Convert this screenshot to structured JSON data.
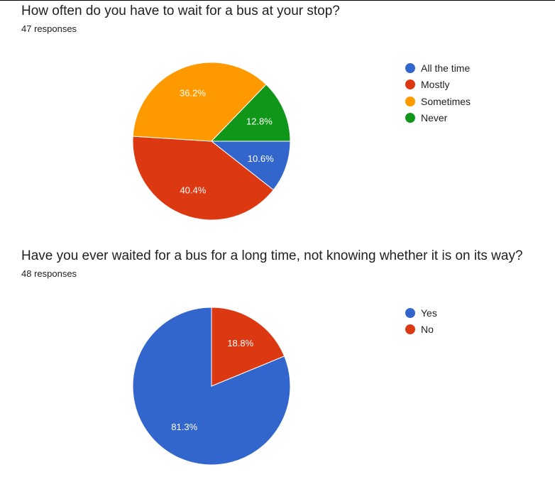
{
  "questions": [
    {
      "title": "How often do you have to wait for a bus at your stop?",
      "responses": "47 responses"
    },
    {
      "title": "Have you ever waited for a bus for a long time, not knowing whether it is on its way?",
      "responses": "48 responses"
    }
  ],
  "chart_data": [
    {
      "type": "pie",
      "title": "How often do you have to wait for a bus at your stop?",
      "legend_position": "right",
      "slices": [
        {
          "label": "All the time",
          "value": 10.6,
          "display": "10.6%",
          "color": "#3366cc"
        },
        {
          "label": "Mostly",
          "value": 40.4,
          "display": "40.4%",
          "color": "#dc3912"
        },
        {
          "label": "Sometimes",
          "value": 36.2,
          "display": "36.2%",
          "color": "#ff9900"
        },
        {
          "label": "Never",
          "value": 12.8,
          "display": "12.8%",
          "color": "#109618"
        }
      ]
    },
    {
      "type": "pie",
      "title": "Have you ever waited for a bus for a long time, not knowing whether it is on its way?",
      "legend_position": "right",
      "slices": [
        {
          "label": "Yes",
          "value": 81.3,
          "display": "81.3%",
          "color": "#3366cc"
        },
        {
          "label": "No",
          "value": 18.8,
          "display": "18.8%",
          "color": "#dc3912"
        }
      ]
    }
  ]
}
